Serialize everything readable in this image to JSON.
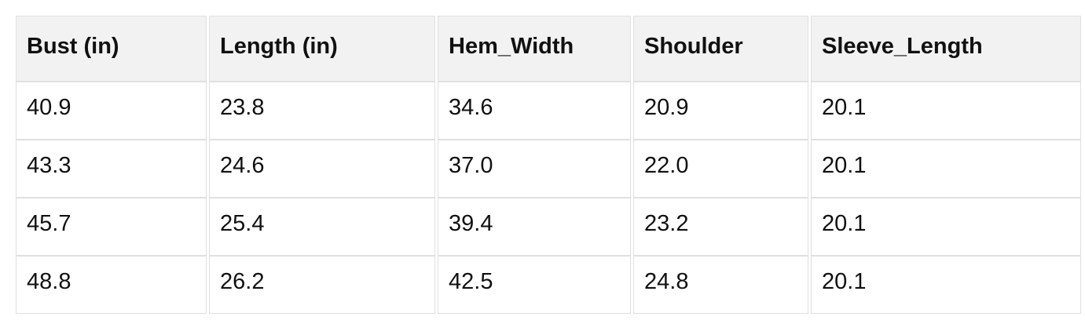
{
  "chart_data": {
    "type": "table",
    "title": "",
    "columns": [
      "Bust (in)",
      "Length (in)",
      "Hem_Width",
      "Shoulder",
      "Sleeve_Length"
    ],
    "rows": [
      [
        "40.9",
        "23.8",
        "34.6",
        "20.9",
        "20.1"
      ],
      [
        "43.3",
        "24.6",
        "37.0",
        "22.0",
        "20.1"
      ],
      [
        "45.7",
        "25.4",
        "39.4",
        "23.2",
        "20.1"
      ],
      [
        "48.8",
        "26.2",
        "42.5",
        "24.8",
        "20.1"
      ]
    ]
  },
  "colors": {
    "header_bg": "#f2f2f2",
    "cell_bg": "#ffffff",
    "border": "#e0e0e0",
    "text": "#111111",
    "page_bg": "#ffffff"
  }
}
